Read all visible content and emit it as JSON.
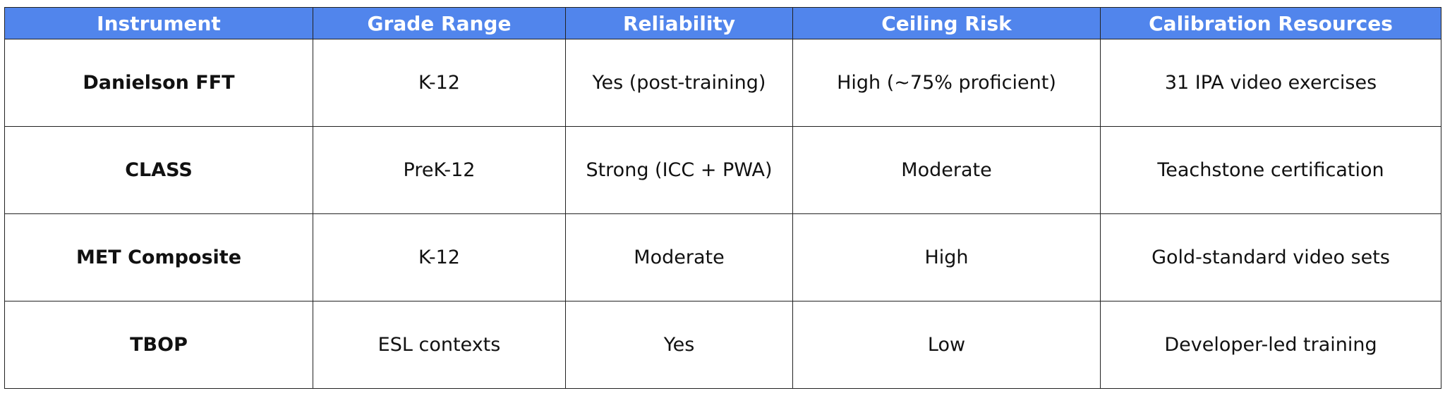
{
  "table": {
    "headers": [
      "Instrument",
      "Grade Range",
      "Reliability",
      "Ceiling Risk",
      "Calibration Resources"
    ],
    "rows": [
      [
        "Danielson FFT",
        "K-12",
        "Yes (post-training)",
        "High (~75% proficient)",
        "31 IPA video exercises"
      ],
      [
        "CLASS",
        "PreK-12",
        "Strong (ICC + PWA)",
        "Moderate",
        "Teachstone certification"
      ],
      [
        "MET Composite",
        "K-12",
        "Moderate",
        "High",
        "Gold-standard video sets"
      ],
      [
        "TBOP",
        "ESL contexts",
        "Yes",
        "Low",
        "Developer-led training"
      ]
    ]
  },
  "colors": {
    "header_bg": "#5185ec",
    "header_text": "#ffffff",
    "border": "#222222"
  }
}
